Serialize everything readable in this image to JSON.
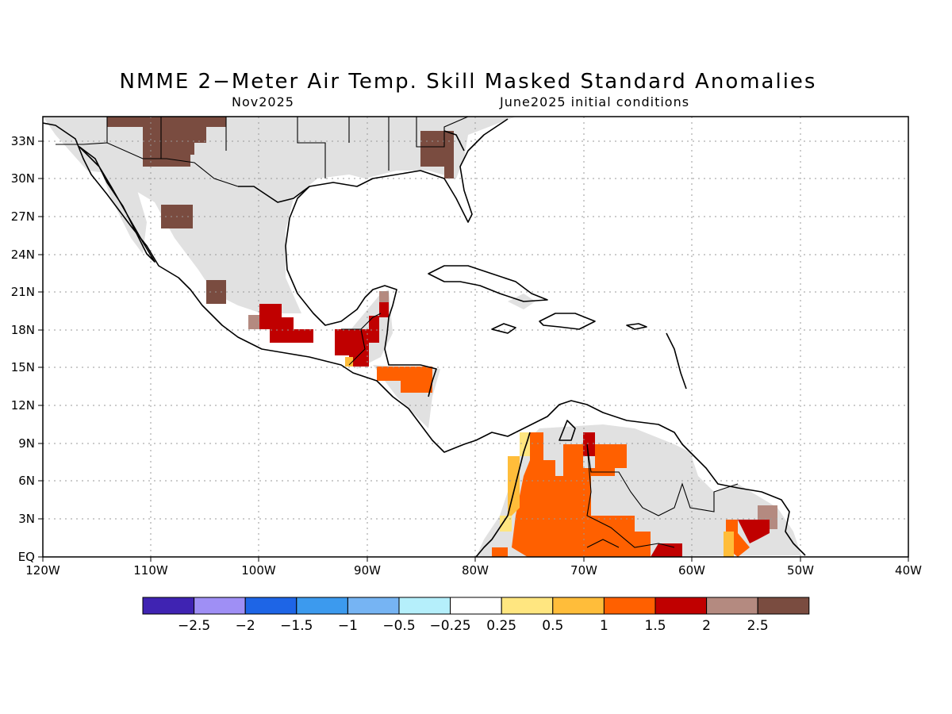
{
  "title": "NMME 2−Meter Air Temp. Skill Masked Standard Anomalies",
  "subtitle_left": "Nov2025",
  "subtitle_right": "June2025 initial conditions",
  "lon_ticks": [
    "120W",
    "110W",
    "100W",
    "90W",
    "80W",
    "70W",
    "60W",
    "50W",
    "40W"
  ],
  "lat_ticks": [
    "EQ",
    "3N",
    "6N",
    "9N",
    "12N",
    "15N",
    "18N",
    "21N",
    "24N",
    "27N",
    "30N",
    "33N"
  ],
  "colorbar": {
    "colors": [
      "#3f23b2",
      "#9f8ff5",
      "#1e65e6",
      "#3c9aee",
      "#76b4f3",
      "#b5effb",
      "#ffffff",
      "#ffe680",
      "#ffbd3a",
      "#ff6000",
      "#c00000",
      "#b48a80",
      "#7a4c40"
    ],
    "labels": [
      "−2.5",
      "−2",
      "−1.5",
      "−1",
      "−0.5",
      "−0.25",
      "0.25",
      "0.5",
      "1",
      "1.5",
      "2",
      "2.5"
    ]
  },
  "colors": {
    "masked": "#e1e1e1",
    "strong_positive": "#7a4c40",
    "positive_2": "#b48a80"
  }
}
